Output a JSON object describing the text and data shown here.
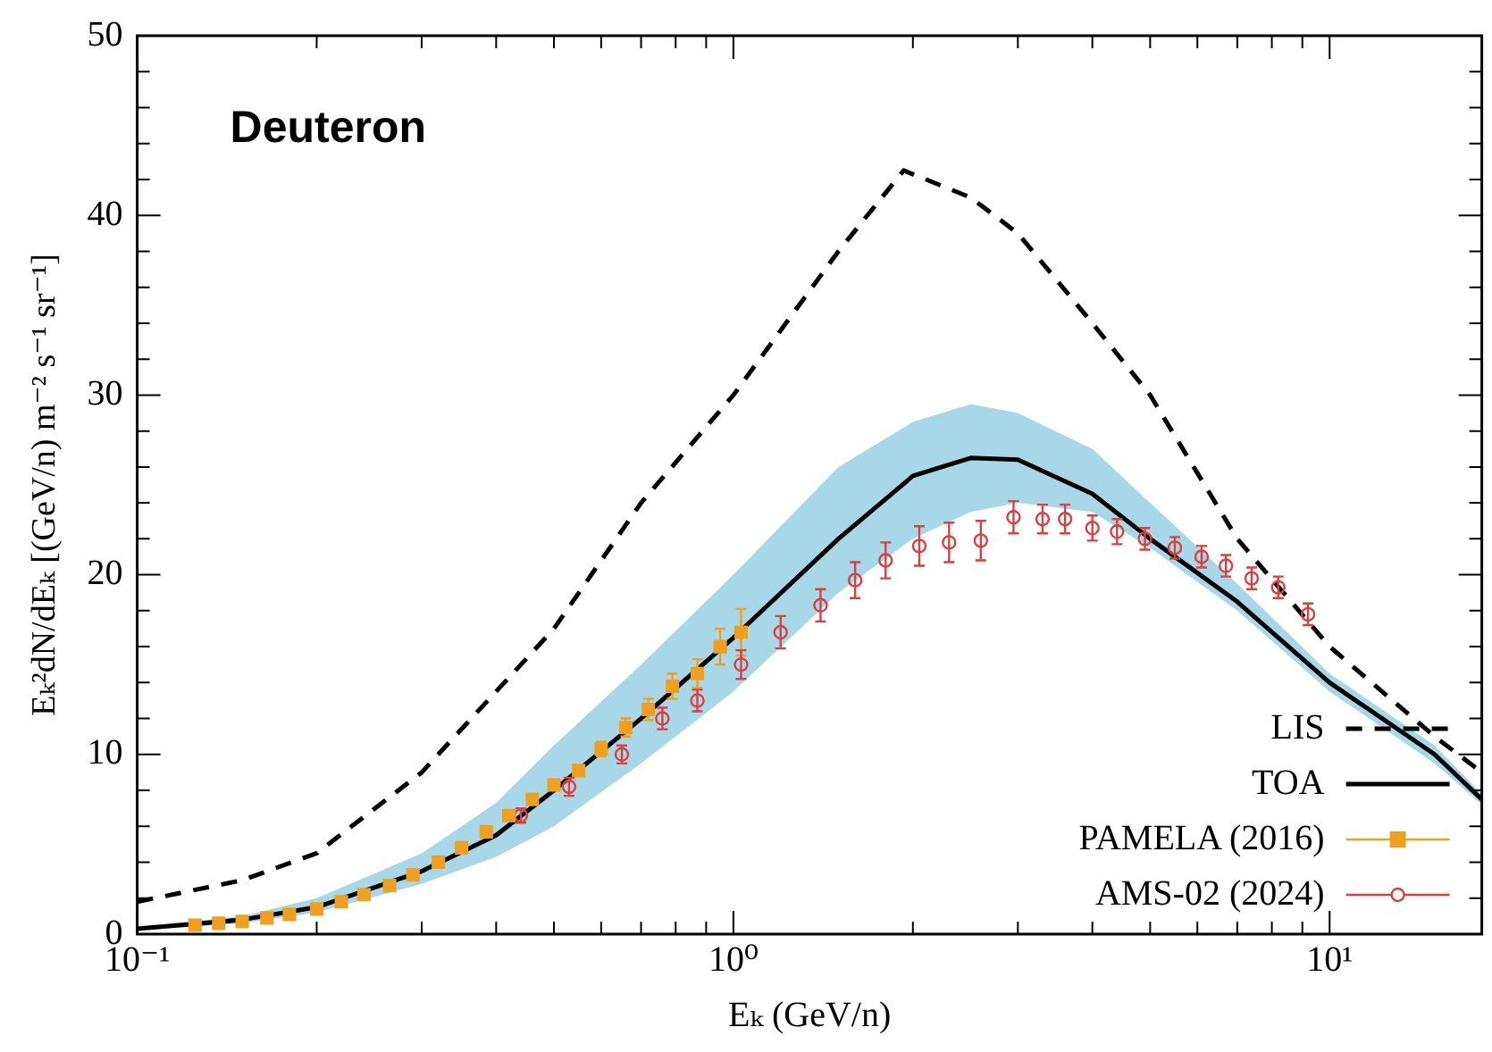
{
  "chart_data": {
    "type": "line",
    "xlabel": "Eₖ (GeV/n)",
    "ylabel": "Eₖ²dN/dEₖ [(GeV/n) m⁻² s⁻¹ sr⁻¹]",
    "annotations": [
      "Deuteron"
    ],
    "log": "x",
    "xlim": [
      0.1,
      18
    ],
    "xticks": [
      {
        "value": 0.1,
        "label": "10⁻¹"
      },
      {
        "value": 1,
        "label": "10⁰"
      },
      {
        "value": 10,
        "label": "10¹"
      }
    ],
    "ylim": [
      0,
      50
    ],
    "yticks": [
      0,
      10,
      20,
      30,
      40,
      50
    ],
    "grid": false,
    "legend": "bottom right",
    "series": [
      {
        "name": "LIS",
        "type": "line",
        "line_style": "dashed",
        "marker": "none",
        "color": "#000000",
        "x": [
          0.1,
          0.15,
          0.2,
          0.3,
          0.5,
          0.7,
          1,
          1.5,
          1.93,
          2.5,
          3,
          4,
          5,
          7,
          10,
          15,
          18
        ],
        "values": [
          1.8,
          3,
          4.5,
          9,
          17,
          24,
          30,
          38,
          42.5,
          41,
          39,
          34,
          30,
          22,
          16,
          11,
          9
        ]
      },
      {
        "name": "TOA",
        "type": "line",
        "line_style": "solid",
        "marker": "none",
        "color": "#000000",
        "x": [
          0.1,
          0.15,
          0.2,
          0.3,
          0.4,
          0.5,
          0.7,
          1,
          1.5,
          2,
          2.5,
          3,
          4,
          5,
          7,
          10,
          15,
          18
        ],
        "values": [
          0.3,
          0.8,
          1.5,
          3.5,
          5.5,
          8,
          12,
          16.5,
          22,
          25.5,
          26.5,
          26.4,
          24.5,
          22,
          18.5,
          14,
          10,
          7.5
        ],
        "lower": [
          0.2,
          0.6,
          1.2,
          2.8,
          4.3,
          6,
          9.5,
          13.5,
          19,
          22,
          23.5,
          24,
          23.5,
          21.5,
          18,
          13.5,
          9.5,
          7.2
        ],
        "upper": [
          0.4,
          1.0,
          2,
          4.5,
          7.3,
          10.5,
          15,
          20,
          26,
          28.5,
          29.5,
          29,
          27,
          24,
          19.5,
          14.5,
          10.5,
          7.8
        ]
      },
      {
        "name": "PAMELA (2016)",
        "type": "scatter",
        "marker": "square",
        "color": "#f0a020",
        "x": [
          0.125,
          0.137,
          0.15,
          0.165,
          0.18,
          0.2,
          0.22,
          0.24,
          0.265,
          0.29,
          0.32,
          0.35,
          0.385,
          0.42,
          0.46,
          0.5,
          0.55,
          0.6,
          0.66,
          0.72,
          0.79,
          0.87,
          0.95,
          1.03
        ],
        "values": [
          0.5,
          0.6,
          0.7,
          0.9,
          1.1,
          1.4,
          1.8,
          2.2,
          2.7,
          3.3,
          4.0,
          4.8,
          5.7,
          6.6,
          7.5,
          8.3,
          9.1,
          10.3,
          11.5,
          12.5,
          13.8,
          14.5,
          16,
          16.8
        ],
        "errors": [
          null,
          null,
          null,
          null,
          null,
          null,
          null,
          null,
          null,
          null,
          null,
          null,
          null,
          null,
          null,
          0.3,
          0.3,
          0.4,
          0.5,
          0.6,
          0.7,
          0.8,
          1.0,
          1.3
        ]
      },
      {
        "name": "AMS-02 (2024)",
        "type": "scatter",
        "marker": "circle",
        "color": "#d94040",
        "x": [
          0.44,
          0.53,
          0.65,
          0.76,
          0.87,
          1.03,
          1.2,
          1.4,
          1.6,
          1.8,
          2.05,
          2.3,
          2.6,
          2.95,
          3.3,
          3.6,
          4.0,
          4.4,
          4.9,
          5.5,
          6.1,
          6.7,
          7.4,
          8.2,
          9.2
        ],
        "values": [
          6.6,
          8.2,
          10.0,
          12.0,
          13.0,
          15.0,
          16.8,
          18.3,
          19.7,
          20.8,
          21.6,
          21.8,
          21.9,
          23.2,
          23.1,
          23.1,
          22.6,
          22.4,
          22.0,
          21.5,
          21.0,
          20.5,
          19.8,
          19.3,
          17.8
        ],
        "errors": [
          0.4,
          0.5,
          0.5,
          0.6,
          0.6,
          0.8,
          0.9,
          0.9,
          1.0,
          1.0,
          1.1,
          1.1,
          1.1,
          0.9,
          0.8,
          0.8,
          0.7,
          0.7,
          0.6,
          0.6,
          0.6,
          0.6,
          0.6,
          0.6,
          0.6
        ]
      }
    ]
  }
}
